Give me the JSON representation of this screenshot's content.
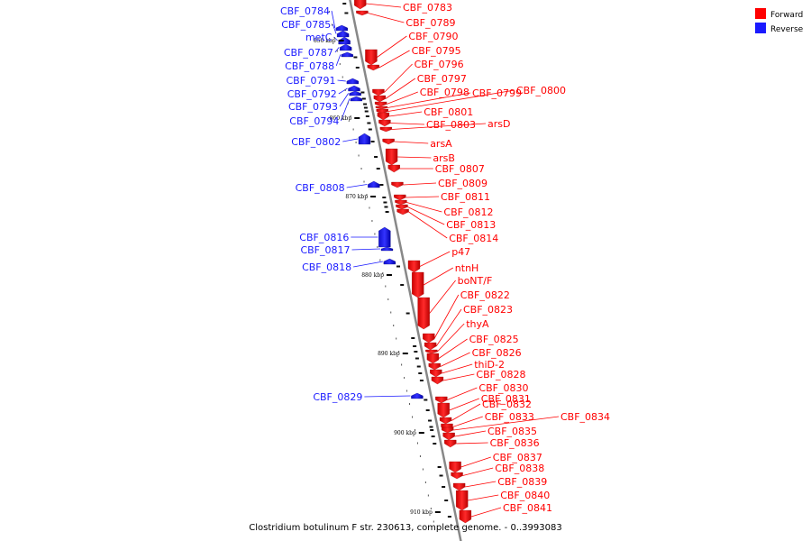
{
  "colors": {
    "forward": "#ff0000",
    "reverse": "#1a1aff",
    "axis": "#888888"
  },
  "legend": [
    {
      "label": "Forward",
      "color": "#ff0000"
    },
    {
      "label": "Reverse",
      "color": "#1a1aff"
    }
  ],
  "caption": "Clostridium botulinum F str. 230613, complete genome. - 0..3993083",
  "ticks": [
    "850 kbp",
    "860 kbp",
    "870 kbp",
    "880 kbp",
    "890 kbp",
    "900 kbp",
    "910 kbp"
  ],
  "forward_genes": [
    "CBF_0783",
    "CBF_0789",
    "CBF_0790",
    "CBF_0795",
    "CBF_0796",
    "CBF_0797",
    "CBF_0798",
    "CBF_0799",
    "CBF_0800",
    "CBF_0801",
    "CBF_0803",
    "arsD",
    "arsA",
    "arsB",
    "CBF_0807",
    "CBF_0809",
    "CBF_0811",
    "CBF_0812",
    "CBF_0813",
    "CBF_0814",
    "p47",
    "ntnH",
    "boNT/F",
    "CBF_0822",
    "CBF_0823",
    "thyA",
    "CBF_0825",
    "CBF_0826",
    "thiD-2",
    "CBF_0828",
    "CBF_0830",
    "CBF_0831",
    "CBF_0832",
    "CBF_0833",
    "CBF_0834",
    "CBF_0835",
    "CBF_0836",
    "CBF_0837",
    "CBF_0838",
    "CBF_0839",
    "CBF_0840",
    "CBF_0841"
  ],
  "reverse_genes": [
    "CBF_0784",
    "CBF_0785",
    "metC",
    "CBF_0787",
    "CBF_0788",
    "CBF_0791",
    "CBF_0792",
    "CBF_0793",
    "CBF_0794",
    "CBF_0802",
    "CBF_0808",
    "CBF_0816",
    "CBF_0817",
    "CBF_0818",
    "CBF_0829"
  ]
}
